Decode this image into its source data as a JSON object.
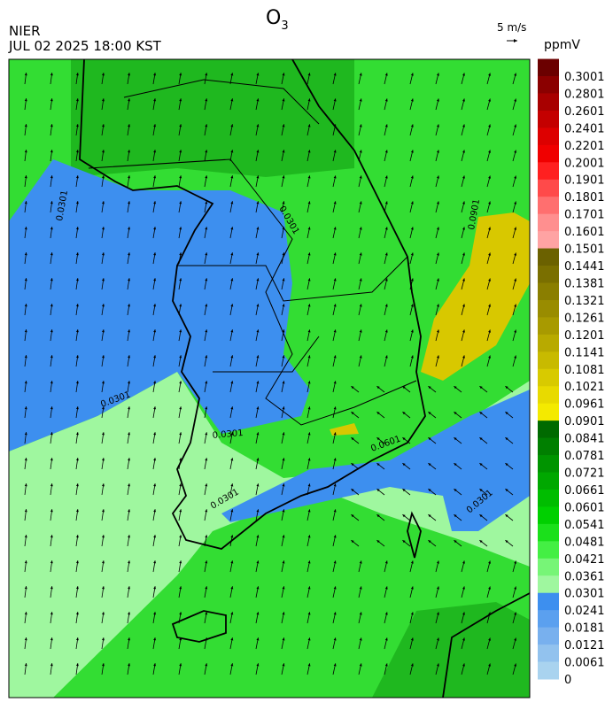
{
  "header": {
    "title": {
      "main": "O",
      "sub": "3"
    },
    "source": "NIER",
    "datetime": "JUL 02 2025 18:00 KST",
    "vector_scale": "5 m/s"
  },
  "colorbar": {
    "unit": "ppmV",
    "labels": [
      0.3001,
      0.2801,
      0.2601,
      0.2401,
      0.2201,
      0.2001,
      0.1901,
      0.1801,
      0.1701,
      0.1601,
      0.1501,
      0.1441,
      0.1381,
      0.1321,
      0.1261,
      0.1201,
      0.1141,
      0.1081,
      0.1021,
      0.0961,
      0.0901,
      0.0841,
      0.0781,
      0.0721,
      0.0661,
      0.0601,
      0.0541,
      0.0481,
      0.0421,
      0.0361,
      0.0301,
      0.0241,
      0.0181,
      0.0121,
      0.0061,
      0
    ],
    "colors": [
      "#6b0000",
      "#8b0000",
      "#a80000",
      "#c40000",
      "#dd0000",
      "#f00000",
      "#ff2020",
      "#ff4a4a",
      "#ff6f6f",
      "#ff8f8f",
      "#ffa3a3",
      "#6b6100",
      "#7a6f00",
      "#8a7e00",
      "#998c00",
      "#a89a00",
      "#b8aa00",
      "#c8ba00",
      "#d8ca00",
      "#e8da00",
      "#f4ea00",
      "#006a00",
      "#007f00",
      "#009400",
      "#00a800",
      "#00bd00",
      "#00d000",
      "#1be01b",
      "#44ef44",
      "#77f577",
      "#9ff79f",
      "#3d8fef",
      "#5ba0ef",
      "#78b0ee",
      "#92c2ee",
      "#a9d3ef"
    ]
  },
  "map": {
    "contour_labels": [
      "0.0301",
      "0.0301",
      "0.0301",
      "0.0301",
      "0.0301",
      "0.0301",
      "0.0601",
      "0.0901"
    ]
  }
}
